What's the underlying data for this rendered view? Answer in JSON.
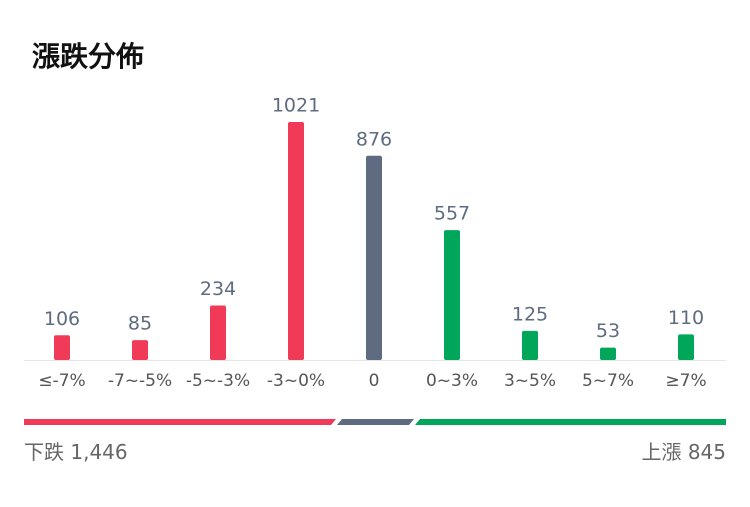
{
  "chart_data": {
    "type": "bar",
    "title": "漲跌分佈",
    "categories": [
      "≤-7%",
      "-7~-5%",
      "-5~-3%",
      "-3~0%",
      "0",
      "0~3%",
      "3~5%",
      "5~7%",
      "≥7%"
    ],
    "values": [
      106,
      85,
      234,
      1021,
      876,
      557,
      125,
      53,
      110
    ],
    "colors": [
      "#f03a58",
      "#f03a58",
      "#f03a58",
      "#f03a58",
      "#5f6b80",
      "#00a65a",
      "#00a65a",
      "#00a65a",
      "#00a65a"
    ]
  },
  "summary": {
    "down_label": "下跌",
    "down_count": "1,446",
    "up_label": "上漲",
    "up_count": "845"
  }
}
